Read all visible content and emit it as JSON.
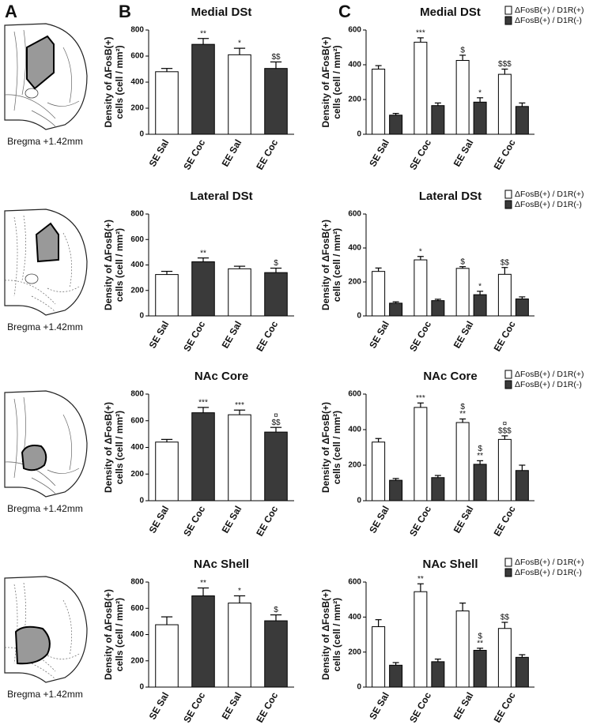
{
  "panel_labels": [
    "A",
    "B",
    "C"
  ],
  "brain_sections": [
    "Bregma +1.42mm",
    "Bregma +1.42mm",
    "Bregma +1.42mm",
    "Bregma +1.42mm"
  ],
  "chart_data": [
    {
      "type": "bar",
      "title": "Medial DSt",
      "ylabel": [
        "Density of ΔFosB(+)",
        "cells (cell / mm²)"
      ],
      "categories": [
        "SE Sal",
        "SE Coc",
        "EE Sal",
        "EE Coc"
      ],
      "values": [
        480,
        690,
        610,
        505
      ],
      "errors": [
        25,
        45,
        50,
        50
      ],
      "annotations": [
        null,
        "**",
        "*",
        "$$"
      ],
      "colors": [
        "#ffffff",
        "#3a3a3a",
        "#ffffff",
        "#3a3a3a"
      ],
      "ylim": [
        0,
        800
      ],
      "yticks": [
        0,
        200,
        400,
        600,
        800
      ]
    },
    {
      "type": "bar",
      "title": "Lateral DSt",
      "ylabel": [
        "Density of ΔFosB(+)",
        "cells (cell / mm²)"
      ],
      "categories": [
        "SE Sal",
        "SE Coc",
        "EE Sal",
        "EE Coc"
      ],
      "values": [
        325,
        425,
        370,
        340
      ],
      "errors": [
        25,
        30,
        20,
        35
      ],
      "annotations": [
        null,
        "**",
        null,
        "$"
      ],
      "colors": [
        "#ffffff",
        "#3a3a3a",
        "#ffffff",
        "#3a3a3a"
      ],
      "ylim": [
        0,
        800
      ],
      "yticks": [
        0,
        200,
        400,
        600,
        800
      ]
    },
    {
      "type": "bar",
      "title": "NAc Core",
      "ylabel": [
        "Density of ΔFosB(+)",
        "cells (cell / mm²)"
      ],
      "categories": [
        "SE Sal",
        "SE Coc",
        "EE Sal",
        "EE Coc"
      ],
      "values": [
        440,
        660,
        645,
        515
      ],
      "errors": [
        20,
        40,
        35,
        35
      ],
      "annotations": [
        null,
        "***",
        "***",
        [
          "¤",
          "$$"
        ]
      ],
      "colors": [
        "#ffffff",
        "#3a3a3a",
        "#ffffff",
        "#3a3a3a"
      ],
      "ylim": [
        0,
        800
      ],
      "yticks": [
        0,
        200,
        400,
        600,
        800
      ]
    },
    {
      "type": "bar",
      "title": "NAc Shell",
      "ylabel": [
        "Density of ΔFosB(+)",
        "cells (cell / mm²)"
      ],
      "categories": [
        "SE Sal",
        "SE Coc",
        "EE Sal",
        "EE Coc"
      ],
      "values": [
        475,
        695,
        640,
        505
      ],
      "errors": [
        60,
        60,
        55,
        45
      ],
      "annotations": [
        null,
        "**",
        "*",
        "$"
      ],
      "colors": [
        "#ffffff",
        "#3a3a3a",
        "#ffffff",
        "#3a3a3a"
      ],
      "ylim": [
        0,
        800
      ],
      "yticks": [
        0,
        200,
        400,
        600,
        800
      ]
    },
    {
      "type": "bar",
      "title": "Medial DSt",
      "ylabel": [
        "Density of ΔFosB(+)",
        "cells (cell / mm²)"
      ],
      "categories": [
        "SE Sal",
        "SE Coc",
        "EE Sal",
        "EE Coc"
      ],
      "series": [
        {
          "name": "ΔFosB(+) / D1R(+)",
          "color": "#ffffff",
          "values": [
            375,
            530,
            425,
            345
          ],
          "errors": [
            20,
            25,
            30,
            30
          ],
          "annotations": [
            null,
            "***",
            "$",
            "$$$"
          ]
        },
        {
          "name": "ΔFosB(+) / D1R(-)",
          "color": "#3a3a3a",
          "values": [
            110,
            165,
            185,
            160
          ],
          "errors": [
            10,
            15,
            25,
            20
          ],
          "annotations": [
            null,
            null,
            "*",
            null
          ]
        }
      ],
      "ylim": [
        0,
        600
      ],
      "yticks": [
        0,
        200,
        400,
        600
      ]
    },
    {
      "type": "bar",
      "title": "Lateral DSt",
      "ylabel": [
        "Density of ΔFosB(+)",
        "cells (cell / mm²)"
      ],
      "categories": [
        "SE Sal",
        "SE Coc",
        "EE Sal",
        "EE Coc"
      ],
      "series": [
        {
          "name": "ΔFosB(+) / D1R(+)",
          "color": "#ffffff",
          "values": [
            262,
            330,
            280,
            245
          ],
          "errors": [
            20,
            20,
            10,
            40
          ],
          "annotations": [
            null,
            "*",
            "$",
            "$$"
          ]
        },
        {
          "name": "ΔFosB(+) / D1R(-)",
          "color": "#3a3a3a",
          "values": [
            75,
            90,
            125,
            100
          ],
          "errors": [
            8,
            8,
            20,
            12
          ],
          "annotations": [
            null,
            null,
            "*",
            null
          ]
        }
      ],
      "ylim": [
        0,
        600
      ],
      "yticks": [
        0,
        200,
        400,
        600
      ]
    },
    {
      "type": "bar",
      "title": "NAc Core",
      "ylabel": [
        "Density of ΔFosB(+)",
        "cells (cell / mm²)"
      ],
      "categories": [
        "SE Sal",
        "SE Coc",
        "EE Sal",
        "EE Coc"
      ],
      "series": [
        {
          "name": "ΔFosB(+) / D1R(+)",
          "color": "#ffffff",
          "values": [
            330,
            525,
            440,
            345
          ],
          "errors": [
            20,
            25,
            20,
            20
          ],
          "annotations": [
            null,
            "***",
            [
              "$",
              "**"
            ],
            [
              "¤",
              "$$$"
            ]
          ]
        },
        {
          "name": "ΔFosB(+) / D1R(-)",
          "color": "#3a3a3a",
          "values": [
            115,
            130,
            205,
            170
          ],
          "errors": [
            10,
            12,
            20,
            30
          ],
          "annotations": [
            null,
            null,
            [
              "$",
              "**"
            ],
            null
          ]
        }
      ],
      "ylim": [
        0,
        600
      ],
      "yticks": [
        0,
        200,
        400,
        600
      ]
    },
    {
      "type": "bar",
      "title": "NAc Shell",
      "ylabel": [
        "Density of ΔFosB(+)",
        "cells (cell / mm²)"
      ],
      "categories": [
        "SE Sal",
        "SE Coc",
        "EE Sal",
        "EE Coc"
      ],
      "series": [
        {
          "name": "ΔFosB(+) / D1R(+)",
          "color": "#ffffff",
          "values": [
            345,
            545,
            435,
            335
          ],
          "errors": [
            40,
            45,
            45,
            35
          ],
          "annotations": [
            null,
            "**",
            null,
            "$$"
          ]
        },
        {
          "name": "ΔFosB(+) / D1R(-)",
          "color": "#3a3a3a",
          "values": [
            125,
            145,
            210,
            170
          ],
          "errors": [
            15,
            15,
            12,
            15
          ],
          "annotations": [
            null,
            null,
            [
              "$",
              "**"
            ],
            null
          ]
        }
      ],
      "ylim": [
        0,
        600
      ],
      "yticks": [
        0,
        200,
        400,
        600
      ]
    }
  ]
}
